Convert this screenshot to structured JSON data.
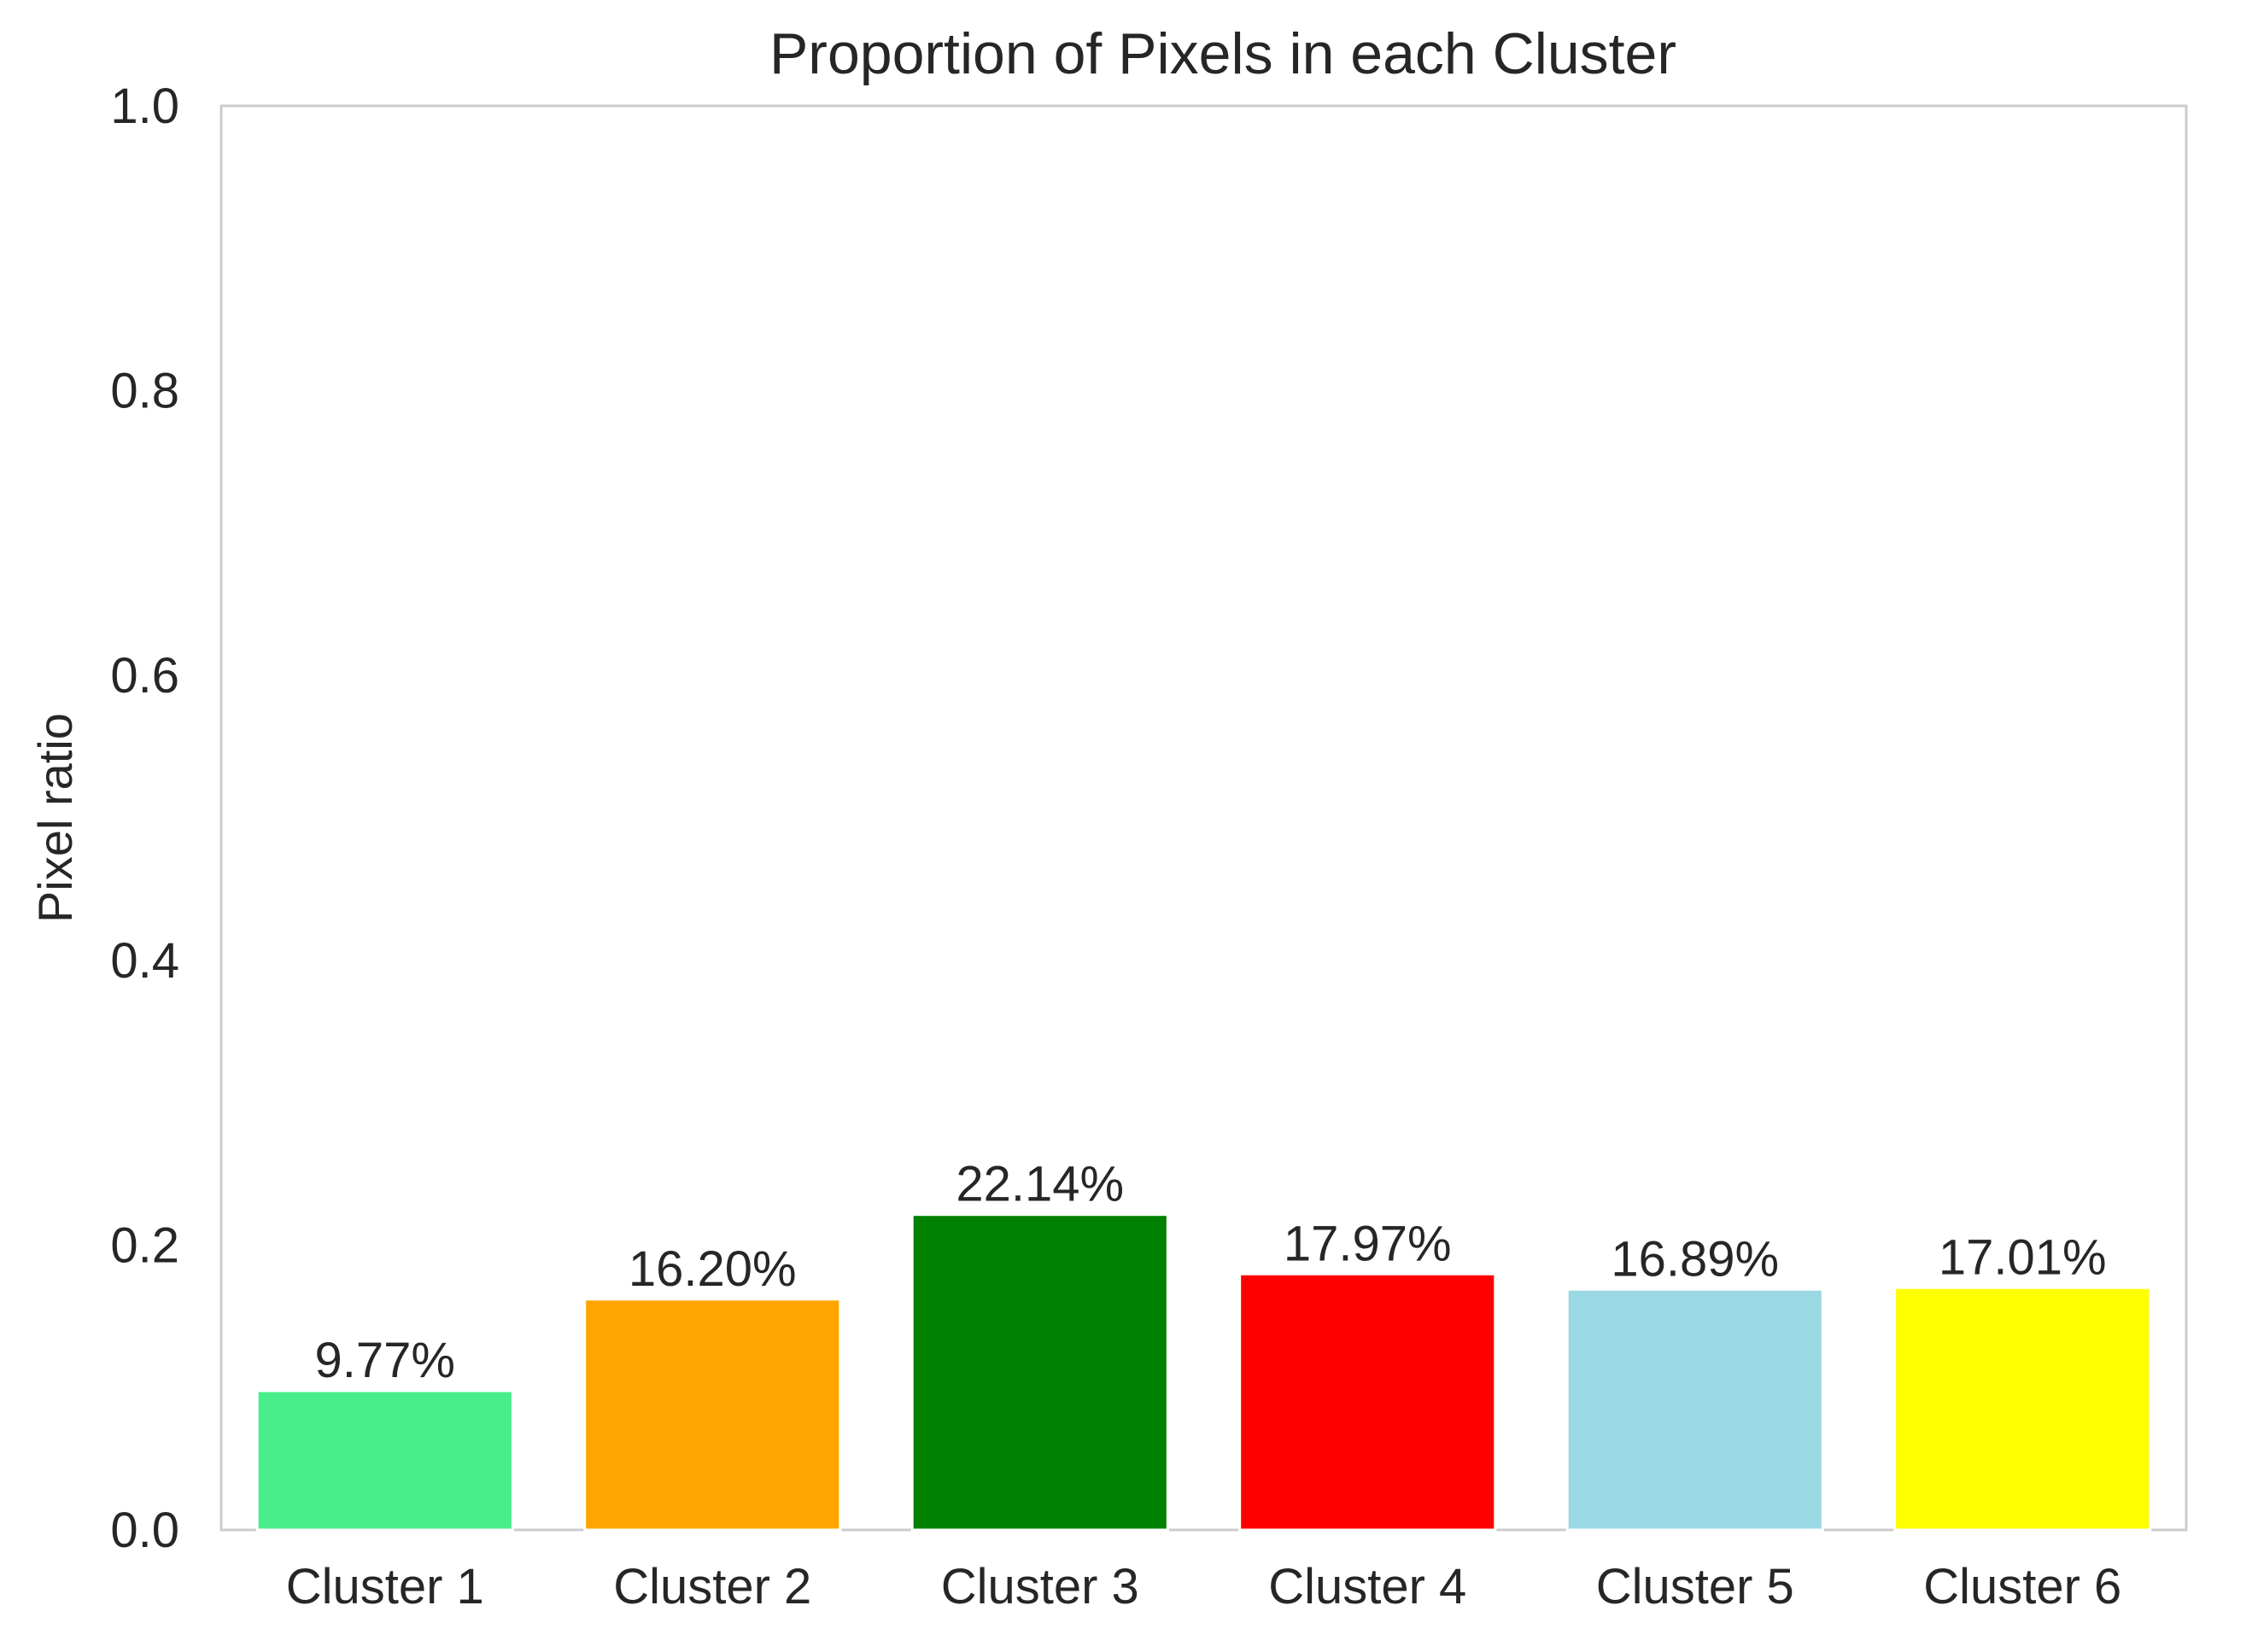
{
  "chart_data": {
    "type": "bar",
    "title": "Proportion of Pixels in each Cluster",
    "xlabel": "",
    "ylabel": "Pixel ratio",
    "ylim": [
      0,
      1.0
    ],
    "yticks": [
      "0.0",
      "0.2",
      "0.4",
      "0.6",
      "0.8",
      "1.0"
    ],
    "grid": false,
    "categories": [
      "Cluster 1",
      "Cluster 2",
      "Cluster 3",
      "Cluster 4",
      "Cluster 5",
      "Cluster 6"
    ],
    "values": [
      0.0977,
      0.162,
      0.2214,
      0.1797,
      0.1689,
      0.1701
    ],
    "data_labels": [
      "9.77%",
      "16.20%",
      "22.14%",
      "17.97%",
      "16.89%",
      "17.01%"
    ],
    "colors": [
      "#48ee8a",
      "#ffa500",
      "#008000",
      "#ff0000",
      "#9ad8e4",
      "#ffff00"
    ]
  }
}
